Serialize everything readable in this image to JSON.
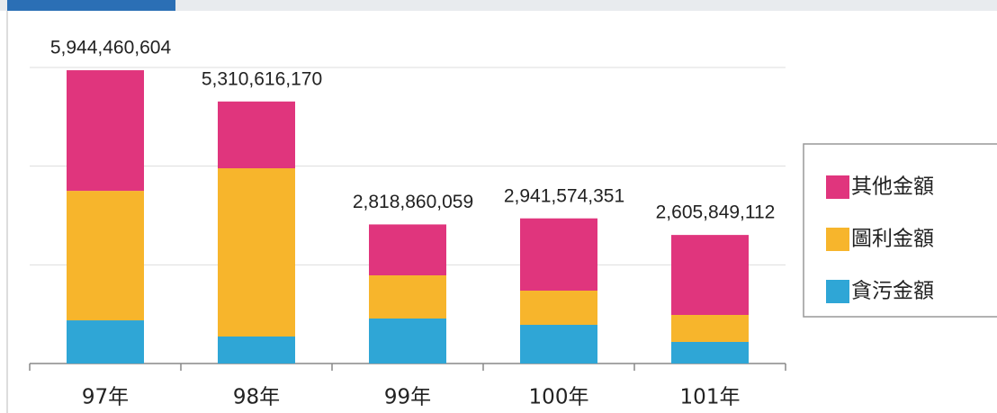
{
  "chart_data": {
    "type": "stacked_bar",
    "categories": [
      "97年",
      "98年",
      "99年",
      "100年",
      "101年"
    ],
    "series": [
      {
        "name": "貪污金額",
        "color": "#2fa6d6",
        "values": [
          875000000,
          547000000,
          912000000,
          784000000,
          438000000
        ]
      },
      {
        "name": "圖利金額",
        "color": "#f7b52c",
        "values": [
          2625000000,
          3410000000,
          875000000,
          693000000,
          547000000
        ]
      },
      {
        "name": "其他金額",
        "color": "#e0357d",
        "values": [
          2444460604,
          1353616170,
          1031860059,
          1464574351,
          1620849112
        ]
      }
    ],
    "totals": [
      {
        "value": 5944460604,
        "label": "5,944,460,604"
      },
      {
        "value": 5310616170,
        "label": "5,310,616,170"
      },
      {
        "value": 2818860059,
        "label": "2,818,860,059"
      },
      {
        "value": 2941574351,
        "label": "2,941,574,351"
      },
      {
        "value": 2605849112,
        "label": "2,605,849,112"
      }
    ],
    "ylim": [
      0,
      6000000000
    ],
    "yticks": [
      0,
      2000000000,
      4000000000,
      6000000000
    ],
    "grid": true,
    "legend": "right"
  }
}
